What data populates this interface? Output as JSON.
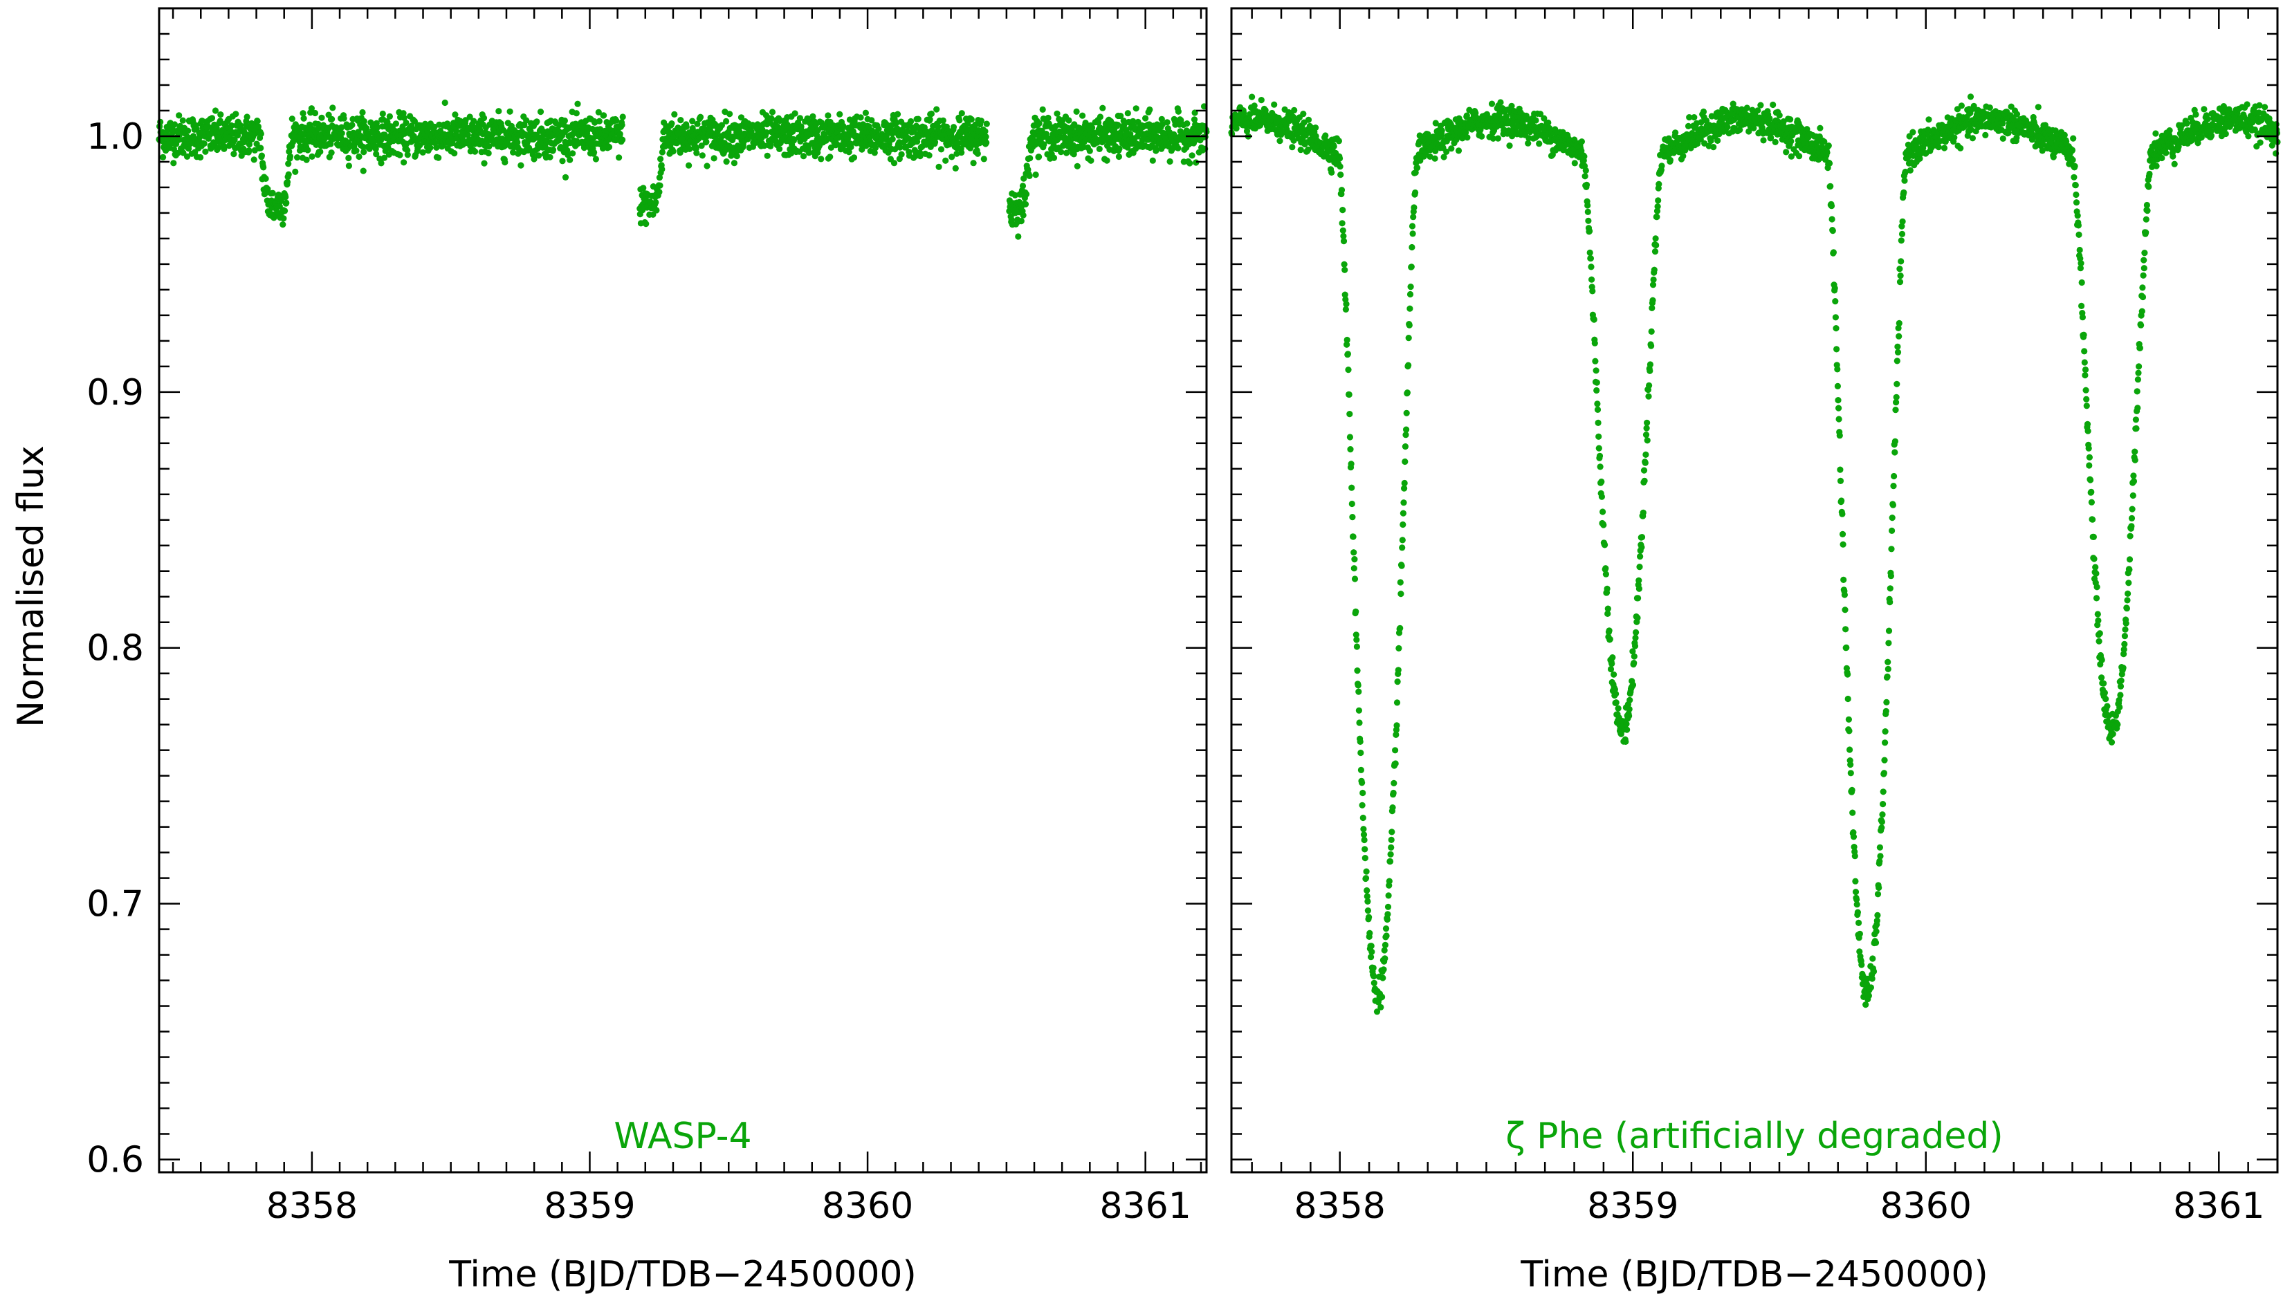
{
  "figure": {
    "ylabel": "Normalised flux",
    "data_color": "#0aa50a",
    "axis_color": "#000000"
  },
  "chart_data": [
    {
      "type": "scatter",
      "name": "WASP-4",
      "xlabel": "Time (BJD/TDB−2450000)",
      "ylabel": "Normalised flux",
      "annotation": "WASP-4",
      "xlim": [
        8357.45,
        8361.22
      ],
      "ylim": [
        0.595,
        1.05
      ],
      "xticks": [
        8358,
        8359,
        8360,
        8361
      ],
      "xtick_labels": [
        "8358",
        "8359",
        "8360",
        "8361"
      ],
      "yticks": [
        0.6,
        0.7,
        0.8,
        0.9,
        1.0
      ],
      "ytick_labels": [
        "0.6",
        "0.7",
        "0.8",
        "0.9",
        "1.0"
      ],
      "baseline": 1.0,
      "scatter": 0.004,
      "segments": [
        [
          8357.45,
          8359.12
        ],
        [
          8359.18,
          8360.43
        ],
        [
          8360.51,
          8361.22
        ]
      ],
      "eclipses": [
        {
          "center": 8357.87,
          "depth": 0.027,
          "half_width": 0.055
        },
        {
          "center": 8359.21,
          "depth": 0.027,
          "half_width": 0.055
        },
        {
          "center": 8360.53,
          "depth": 0.028,
          "half_width": 0.055
        }
      ]
    },
    {
      "type": "scatter",
      "name": "ζ Phe (artificially degraded)",
      "xlabel": "Time (BJD/TDB−2450000)",
      "annotation": "ζ Phe  (artificially degraded)",
      "xlim": [
        8357.63,
        8361.2
      ],
      "ylim": [
        0.595,
        1.05
      ],
      "xticks": [
        8358,
        8359,
        8360,
        8361
      ],
      "xtick_labels": [
        "8358",
        "8359",
        "8360",
        "8361"
      ],
      "yticks": [
        0.6,
        0.7,
        0.8,
        0.9,
        1.0
      ],
      "ytick_labels": [
        "",
        "",
        "",
        "",
        ""
      ],
      "period": 1.6698,
      "scatter": 0.003,
      "segments": [
        [
          8357.63,
          8361.2
        ]
      ],
      "ellipsoidal": {
        "mean": 0.998,
        "amplitude": 0.0085,
        "phase_zero": 8358.13
      },
      "eclipses": [
        {
          "center": 8358.13,
          "depth": 0.325,
          "half_width": 0.135
        },
        {
          "center": 8358.965,
          "depth": 0.222,
          "half_width": 0.135
        },
        {
          "center": 8359.8,
          "depth": 0.325,
          "half_width": 0.135
        },
        {
          "center": 8360.635,
          "depth": 0.222,
          "half_width": 0.135
        }
      ]
    }
  ]
}
